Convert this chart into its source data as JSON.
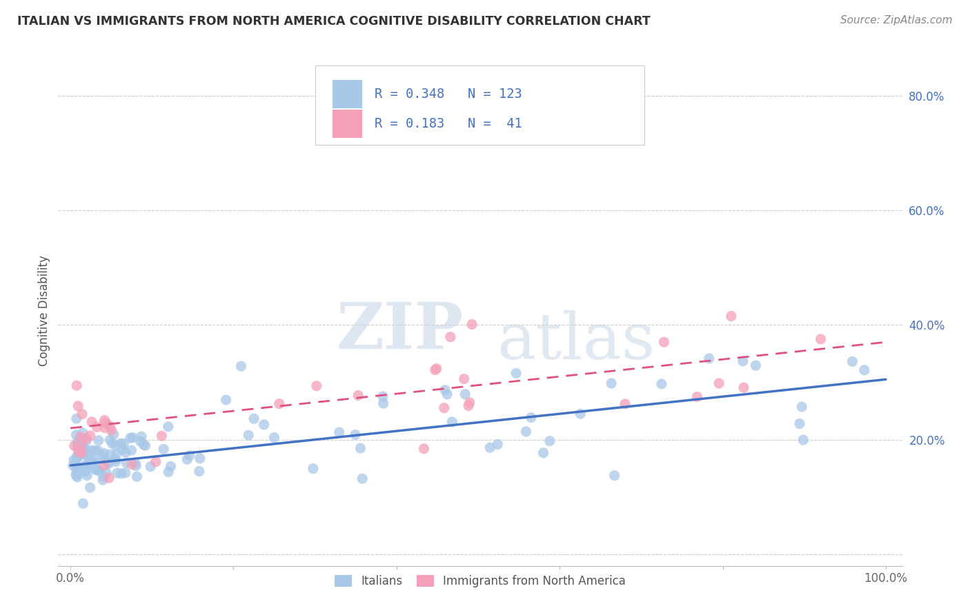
{
  "title": "ITALIAN VS IMMIGRANTS FROM NORTH AMERICA COGNITIVE DISABILITY CORRELATION CHART",
  "source": "Source: ZipAtlas.com",
  "ylabel": "Cognitive Disability",
  "x_tick_labels": [
    "0.0%",
    "",
    "",
    "",
    "",
    "100.0%"
  ],
  "y_tick_labels": [
    "",
    "20.0%",
    "40.0%",
    "60.0%",
    "80.0%"
  ],
  "italians_color": "#a8c8e8",
  "immigrants_color": "#f4a0b8",
  "italians_line_color": "#4472c4",
  "immigrants_line_color": "#e05080",
  "R_italians": 0.348,
  "N_italians": 123,
  "R_immigrants": 0.183,
  "N_immigrants": 41,
  "legend_label_italians": "Italians",
  "legend_label_immigrants": "Immigrants from North America",
  "watermark_zip": "ZIP",
  "watermark_atlas": "atlas",
  "background_color": "#ffffff"
}
